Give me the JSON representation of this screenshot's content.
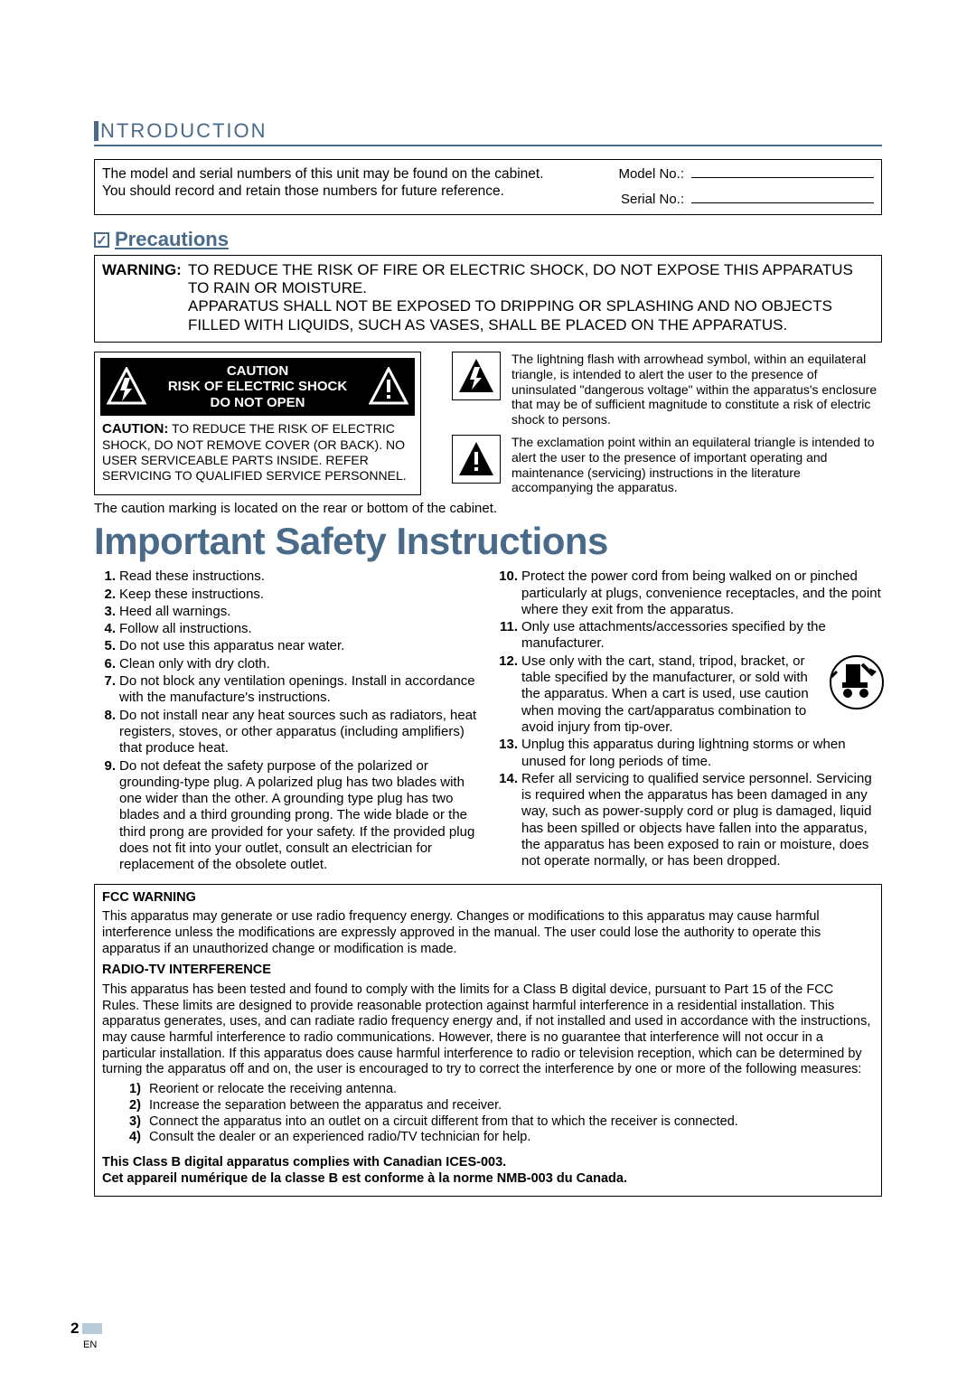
{
  "colors": {
    "accent": "#4a6a8a",
    "tab": "#b9cad9",
    "text": "#000000",
    "bg": "#ffffff"
  },
  "section_title": "NTRODUCTION",
  "info": {
    "line1": "The model and serial numbers of this unit may be found on the cabinet.",
    "line2": "You should record and retain those numbers for future reference.",
    "model_label": "Model No.:",
    "serial_label": "Serial No.:"
  },
  "precautions_heading": "Precautions",
  "warning": {
    "label": "WARNING:",
    "l1": "TO REDUCE THE RISK OF FIRE OR ELECTRIC SHOCK, DO NOT EXPOSE THIS APPARATUS TO RAIN OR MOISTURE.",
    "l2": "APPARATUS SHALL NOT BE EXPOSED TO DRIPPING OR SPLASHING AND NO OBJECTS FILLED WITH LIQUIDS, SUCH AS VASES, SHALL BE PLACED ON THE APPARATUS."
  },
  "caution_banner": {
    "l1": "CAUTION",
    "l2": "RISK OF ELECTRIC SHOCK",
    "l3": "DO NOT OPEN"
  },
  "caution_text": {
    "bold": "CAUTION:",
    "rest": " TO REDUCE THE RISK OF ELECTRIC SHOCK, DO NOT REMOVE COVER (OR BACK). NO USER SERVICEABLE PARTS INSIDE. REFER SERVICING TO QUALIFIED SERVICE PERSONNEL."
  },
  "lightning_text": "The lightning flash with arrowhead symbol, within an equilateral triangle, is intended to alert the user to the presence of uninsulated \"dangerous voltage\" within the apparatus's enclosure that may be of sufficient magnitude to constitute a risk of electric shock to persons.",
  "exclaim_text": "The exclamation point within an equilateral triangle is intended to alert the user to the presence of important operating and maintenance (servicing) instructions in the literature accompanying the apparatus.",
  "note": "The caution marking is located on the rear or bottom of the cabinet.",
  "big_title": "Important Safety Instructions",
  "list_left": [
    "Read these instructions.",
    "Keep these instructions.",
    "Heed all warnings.",
    "Follow all instructions.",
    "Do not use this apparatus near water.",
    "Clean only with dry cloth.",
    "Do not block any ventilation openings. Install in accordance with the manufacture's instructions.",
    "Do not install near any heat sources such as radiators, heat registers, stoves, or other apparatus (including amplifiers) that produce heat.",
    "Do not defeat the safety purpose of the polarized or grounding-type plug. A polarized plug has two blades with one wider than the other. A grounding type plug has two blades and a third grounding prong. The wide blade or the third prong are provided for your safety. If the provided plug does not fit into your outlet, consult an electrician for replacement of the obsolete outlet."
  ],
  "list_right": [
    "Protect the power cord from being walked on or pinched particularly at plugs, convenience receptacles, and the point where they exit from the apparatus.",
    "Only use attachments/accessories specified by the manufacturer.",
    "Use only with the cart, stand, tripod, bracket, or table specified by the manufacturer, or sold with the apparatus. When a cart is used, use caution when moving the cart/apparatus combination to avoid injury from tip-over.",
    "Unplug this apparatus during lightning storms or when unused for long periods of time.",
    "Refer all servicing to qualified service personnel. Servicing is required when the apparatus has been damaged in any way, such as power-supply cord or plug is damaged, liquid has been spilled or objects have fallen into the apparatus, the apparatus has been exposed to rain or moisture, does not operate normally, or has been dropped."
  ],
  "fcc": {
    "h1": "FCC WARNING",
    "p1": "This apparatus may generate or use radio frequency energy. Changes or modifications to this apparatus may cause harmful interference unless the modifications are expressly approved in the manual. The user could lose the authority to operate this apparatus if an unauthorized change or modification is made.",
    "h2": "RADIO-TV INTERFERENCE",
    "p2": "This apparatus has been tested and found to comply with the limits for a Class B digital device, pursuant to Part 15 of the FCC Rules. These limits are designed to provide reasonable protection against harmful interference in a residential installation. This apparatus generates, uses, and can radiate radio frequency energy and, if not installed and used in accordance with the instructions, may cause harmful interference to radio communications. However, there is no guarantee that interference will not occur in a particular installation. If this apparatus does cause harmful interference to radio or television reception, which can be determined by turning the apparatus off and on, the user is encouraged to try to correct the interference by one or more of the following measures:",
    "m1": "Reorient or relocate the receiving antenna.",
    "m2": "Increase the separation between the apparatus and receiver.",
    "m3": "Connect the apparatus into an outlet on a circuit different from that to which the receiver is connected.",
    "m4": "Consult the dealer or an experienced radio/TV technician for help.",
    "final1": "This Class B digital apparatus complies with Canadian ICES-003.",
    "final2": "Cet appareil numérique de la classe B est conforme à la norme NMB-003 du Canada."
  },
  "page_number": "2",
  "lang": "EN"
}
